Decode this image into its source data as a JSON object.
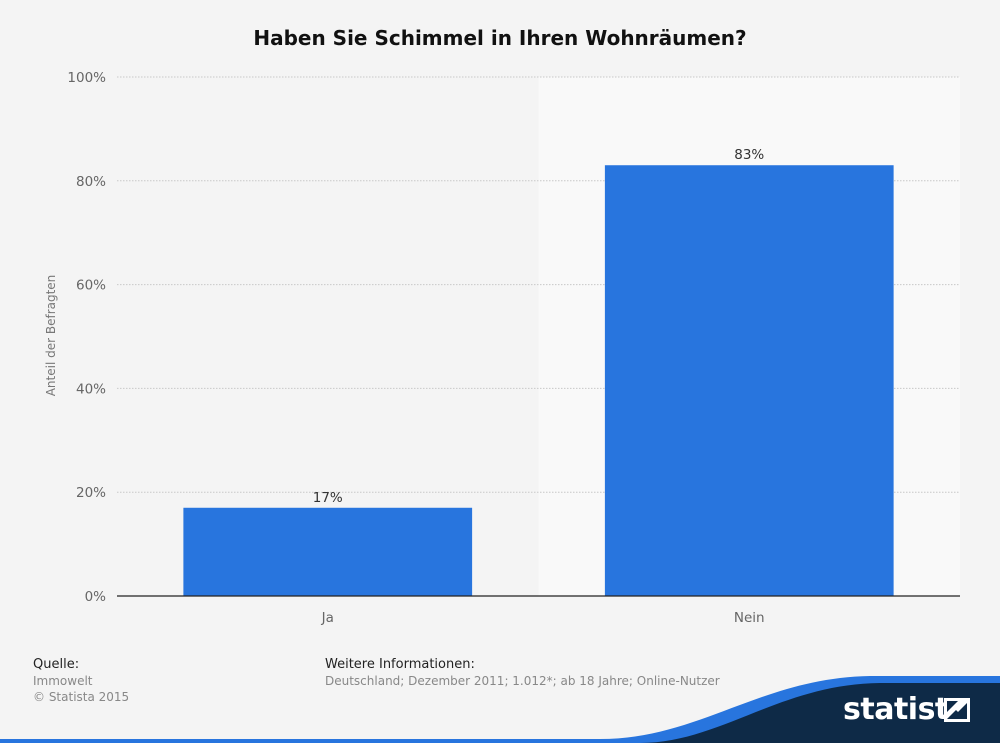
{
  "chart_data": {
    "type": "bar",
    "title": "Haben Sie Schimmel in Ihren Wohnräumen?",
    "categories": [
      "Ja",
      "Nein"
    ],
    "values": [
      17,
      83
    ],
    "value_labels": [
      "17%",
      "83%"
    ],
    "ylabel": "Anteil der Befragten",
    "xlabel": "",
    "ylim": [
      0,
      100
    ],
    "yticks": [
      {
        "value": 0,
        "label": "0%"
      },
      {
        "value": 20,
        "label": "20%"
      },
      {
        "value": 40,
        "label": "40%"
      },
      {
        "value": 60,
        "label": "60%"
      },
      {
        "value": 80,
        "label": "80%"
      },
      {
        "value": 100,
        "label": "100%"
      }
    ],
    "grid": true,
    "bar_color": "#2875de",
    "highlight_category": "Nein"
  },
  "footer": {
    "source_heading": "Quelle:",
    "source_lines": [
      "Immowelt",
      "© Statista 2015"
    ],
    "info_heading": "Weitere Informationen:",
    "info_text": "Deutschland; Dezember 2011; 1.012*; ab 18 Jahre; Online-Nutzer"
  },
  "brand": {
    "name": "statista",
    "color_dark": "#0e2a47",
    "color_accent": "#2875de"
  }
}
